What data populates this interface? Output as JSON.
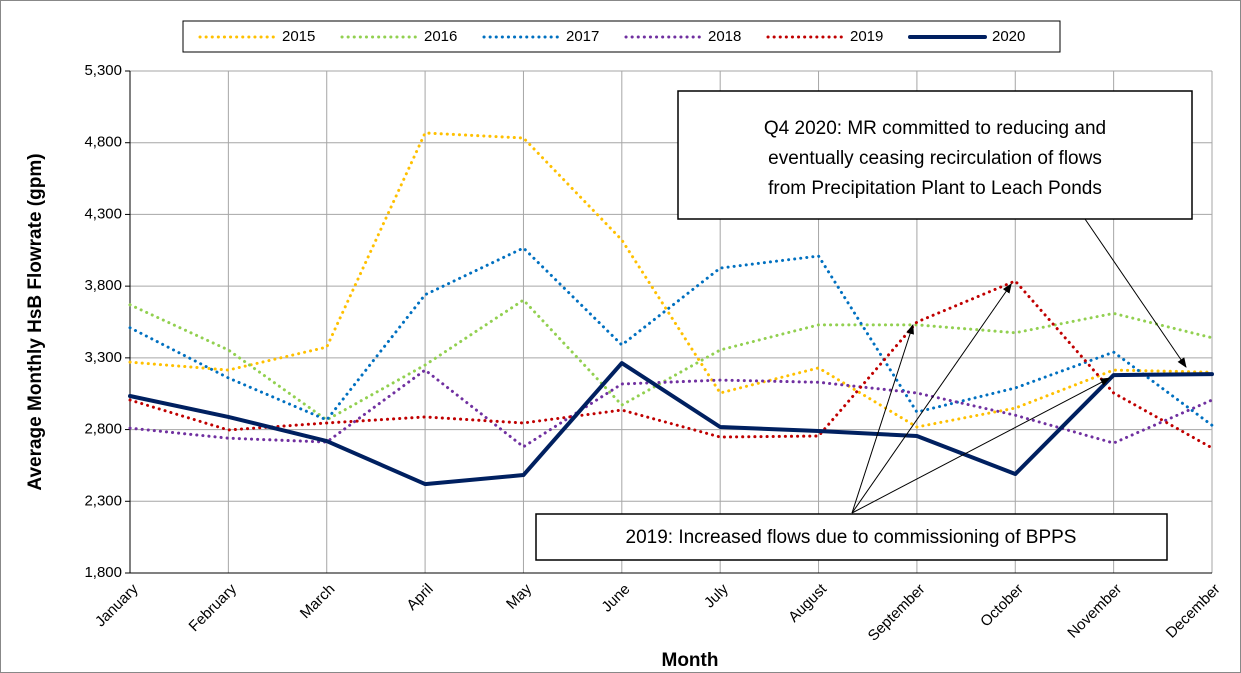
{
  "chart_data": {
    "type": "line",
    "x_label": "Month",
    "y_label": "Average Monthly HsB Flowrate (gpm)",
    "categories": [
      "January",
      "February",
      "March",
      "April",
      "May",
      "June",
      "July",
      "August",
      "September",
      "October",
      "November",
      "December"
    ],
    "series": [
      {
        "name": "2015",
        "color": "#ffc000",
        "style": "dotted",
        "values": [
          3270,
          3215,
          3375,
          4868,
          4833,
          4122,
          3055,
          3230,
          2818,
          2950,
          3215,
          3200
        ]
      },
      {
        "name": "2016",
        "color": "#92d050",
        "style": "dotted",
        "values": [
          3670,
          3355,
          2867,
          3250,
          3703,
          2971,
          3355,
          3530,
          3530,
          3475,
          3610,
          3440
        ]
      },
      {
        "name": "2017",
        "color": "#0070c0",
        "style": "dotted",
        "values": [
          3510,
          3160,
          2867,
          3740,
          4066,
          3390,
          3926,
          4010,
          2922,
          3090,
          3340,
          2830
        ]
      },
      {
        "name": "2018",
        "color": "#7030a0",
        "style": "dotted",
        "values": [
          2810,
          2740,
          2713,
          3215,
          2680,
          3118,
          3145,
          3130,
          3055,
          2900,
          2706,
          3006
        ]
      },
      {
        "name": "2019",
        "color": "#c00000",
        "style": "dotted",
        "values": [
          3006,
          2797,
          2846,
          2888,
          2846,
          2936,
          2748,
          2755,
          3550,
          3836,
          3055,
          2672
        ]
      },
      {
        "name": "2020",
        "color": "#002060",
        "style": "solid",
        "values": [
          3034,
          2888,
          2720,
          2420,
          2483,
          3264,
          2818,
          2790,
          2755,
          2490,
          3180,
          3187
        ]
      }
    ],
    "ylim": [
      1800,
      5300
    ],
    "yticks": [
      {
        "value": 1800,
        "label": "1,800"
      },
      {
        "value": 2300,
        "label": "2,300"
      },
      {
        "value": 2800,
        "label": "2,800"
      },
      {
        "value": 3300,
        "label": "3,300"
      },
      {
        "value": 3800,
        "label": "3,800"
      },
      {
        "value": 4300,
        "label": "4,300"
      },
      {
        "value": 4800,
        "label": "4,800"
      },
      {
        "value": 5300,
        "label": "5,300"
      }
    ],
    "grid": true,
    "legend": "top",
    "annotations": [
      {
        "lines": [
          "Q4 2020: MR committed to reducing and",
          "eventually ceasing recirculation of flows",
          "from Precipitation Plant to Leach Ponds"
        ]
      },
      {
        "lines": [
          "2019: Increased flows due to commissioning of BPPS"
        ]
      }
    ]
  }
}
